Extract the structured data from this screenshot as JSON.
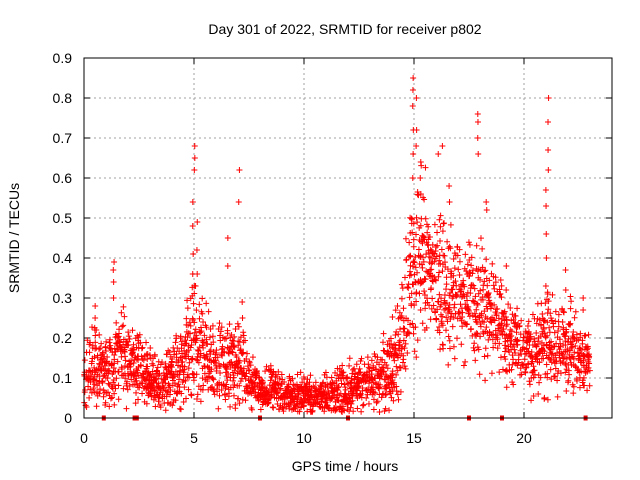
{
  "chart_data": {
    "type": "scatter",
    "title": "Day 301 of 2022, SRMTID for receiver p802",
    "xlabel": "GPS time / hours",
    "ylabel": "SRMTID / TECUs",
    "xlim": [
      0,
      24
    ],
    "ylim": [
      0,
      0.9
    ],
    "xticks": [
      0,
      5,
      10,
      15,
      20
    ],
    "xtick_labels": [
      "0",
      "5",
      "10",
      "15",
      "20"
    ],
    "yticks": [
      0,
      0.1,
      0.2,
      0.3,
      0.4,
      0.5,
      0.6,
      0.7,
      0.8,
      0.9
    ],
    "ytick_labels": [
      "0",
      "0.1",
      "0.2",
      "0.3",
      "0.4",
      "0.5",
      "0.6",
      "0.7",
      "0.8",
      "0.9"
    ],
    "grid": true,
    "marker": "+",
    "color": "#ff0000",
    "zero_markers_hours": [
      0.9,
      2.3,
      2.4,
      8.0,
      12.0,
      17.5,
      19.0,
      22.8
    ],
    "envelope": {
      "hours": [
        0,
        0.5,
        1.0,
        1.5,
        2.0,
        2.5,
        3.0,
        3.5,
        4.0,
        4.5,
        5.0,
        5.5,
        6.0,
        6.5,
        7.0,
        7.5,
        8.0,
        8.5,
        9.0,
        9.5,
        10.0,
        10.5,
        11.0,
        11.5,
        12.0,
        12.5,
        13.0,
        13.5,
        14.0,
        14.5,
        15.0,
        15.5,
        16.0,
        16.5,
        17.0,
        17.5,
        18.0,
        18.5,
        19.0,
        19.5,
        20.0,
        20.5,
        21.0,
        21.5,
        22.0,
        22.5,
        23.0
      ],
      "median": [
        0.11,
        0.13,
        0.11,
        0.16,
        0.14,
        0.12,
        0.1,
        0.08,
        0.1,
        0.13,
        0.2,
        0.17,
        0.13,
        0.12,
        0.14,
        0.1,
        0.07,
        0.08,
        0.06,
        0.06,
        0.05,
        0.05,
        0.06,
        0.07,
        0.07,
        0.08,
        0.09,
        0.1,
        0.12,
        0.2,
        0.38,
        0.4,
        0.35,
        0.32,
        0.3,
        0.28,
        0.27,
        0.25,
        0.22,
        0.18,
        0.17,
        0.16,
        0.2,
        0.16,
        0.18,
        0.15,
        0.13
      ],
      "spread": [
        0.05,
        0.06,
        0.05,
        0.07,
        0.06,
        0.05,
        0.04,
        0.04,
        0.05,
        0.06,
        0.09,
        0.07,
        0.06,
        0.06,
        0.07,
        0.04,
        0.03,
        0.03,
        0.03,
        0.03,
        0.03,
        0.03,
        0.03,
        0.04,
        0.04,
        0.04,
        0.04,
        0.05,
        0.06,
        0.09,
        0.13,
        0.12,
        0.11,
        0.1,
        0.1,
        0.09,
        0.09,
        0.08,
        0.07,
        0.06,
        0.06,
        0.06,
        0.08,
        0.06,
        0.07,
        0.06,
        0.05
      ]
    },
    "spikes": [
      {
        "hour": 0.5,
        "values": [
          0.22,
          0.25,
          0.28
        ]
      },
      {
        "hour": 1.35,
        "values": [
          0.3,
          0.34,
          0.37,
          0.39
        ]
      },
      {
        "hour": 4.95,
        "values": [
          0.36,
          0.41,
          0.48,
          0.54
        ]
      },
      {
        "hour": 5.02,
        "values": [
          0.62,
          0.65,
          0.68
        ]
      },
      {
        "hour": 5.15,
        "values": [
          0.36,
          0.42,
          0.49
        ]
      },
      {
        "hour": 6.55,
        "values": [
          0.38,
          0.45
        ]
      },
      {
        "hour": 7.05,
        "values": [
          0.54,
          0.62
        ]
      },
      {
        "hour": 7.2,
        "values": [
          0.25,
          0.29
        ]
      },
      {
        "hour": 14.95,
        "values": [
          0.6,
          0.66,
          0.72,
          0.78,
          0.82,
          0.85
        ]
      },
      {
        "hour": 15.1,
        "values": [
          0.68,
          0.72,
          0.8
        ]
      },
      {
        "hour": 15.3,
        "values": [
          0.56,
          0.6,
          0.64
        ]
      },
      {
        "hour": 16.1,
        "values": [
          0.66
        ]
      },
      {
        "hour": 16.3,
        "values": [
          0.68
        ]
      },
      {
        "hour": 16.6,
        "values": [
          0.54,
          0.58
        ]
      },
      {
        "hour": 17.9,
        "values": [
          0.66,
          0.7,
          0.74,
          0.76
        ]
      },
      {
        "hour": 18.3,
        "values": [
          0.52,
          0.54
        ]
      },
      {
        "hour": 19.2,
        "values": [
          0.32,
          0.38
        ]
      },
      {
        "hour": 21.0,
        "values": [
          0.4,
          0.46,
          0.53,
          0.57
        ]
      },
      {
        "hour": 21.1,
        "values": [
          0.62,
          0.67,
          0.74,
          0.8
        ]
      },
      {
        "hour": 21.9,
        "values": [
          0.32,
          0.37
        ]
      },
      {
        "hour": 22.7,
        "values": [
          0.27,
          0.3
        ]
      }
    ]
  }
}
